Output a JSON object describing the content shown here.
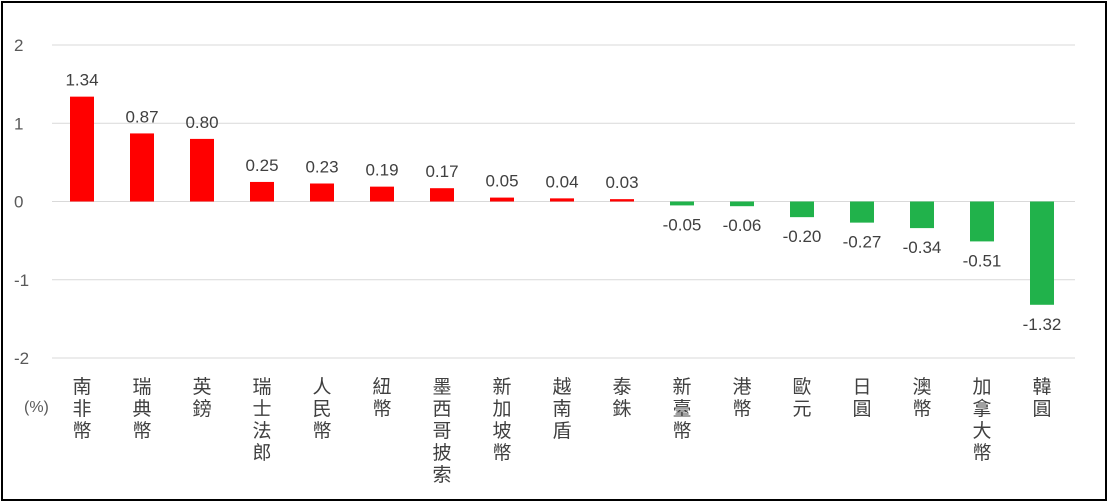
{
  "chart_data": {
    "type": "bar",
    "ylabel": "(%)",
    "ylim": [
      -2,
      2
    ],
    "yticks": [
      2,
      1,
      0,
      -1,
      -2
    ],
    "grid": true,
    "categories": [
      "南非幣",
      "瑞典幣",
      "英鎊",
      "瑞士法郎",
      "人民幣",
      "紐幣",
      "墨西哥披索",
      "新加坡幣",
      "越南盾",
      "泰銖",
      "新臺幣",
      "港幣",
      "歐元",
      "日圓",
      "澳幣",
      "加拿大幣",
      "韓圓"
    ],
    "values": [
      1.34,
      0.87,
      0.8,
      0.25,
      0.23,
      0.19,
      0.17,
      0.05,
      0.04,
      0.03,
      -0.05,
      -0.06,
      -0.2,
      -0.27,
      -0.34,
      -0.51,
      -1.32
    ],
    "value_labels": [
      "1.34",
      "0.87",
      "0.80",
      "0.25",
      "0.23",
      "0.19",
      "0.17",
      "0.05",
      "0.04",
      "0.03",
      "-0.05",
      "-0.06",
      "-0.20",
      "-0.27",
      "-0.34",
      "-0.51",
      "-1.32"
    ],
    "colors": {
      "positive": "#ff0000",
      "negative": "#21b24b",
      "grid": "#d9d9d9"
    }
  }
}
